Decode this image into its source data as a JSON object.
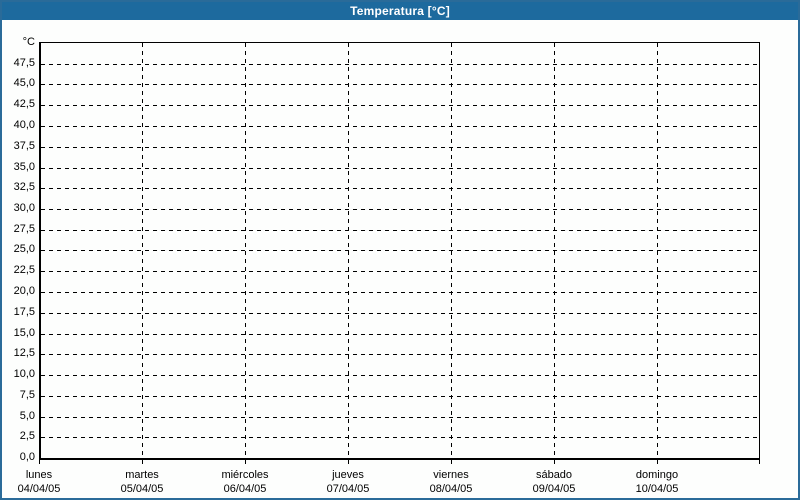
{
  "header": {
    "title": "Temperatura [°C]"
  },
  "colors": {
    "titlebar_bg": "#1d6a9e",
    "titlebar_text": "#ffffff",
    "window_border": "#2a6b99",
    "background": "#fdfefd",
    "grid": "#000000",
    "text": "#000000"
  },
  "chart_data": {
    "type": "line",
    "title": "Temperatura [°C]",
    "ylabel": "°C",
    "xlabel": "",
    "ylim": [
      0,
      50
    ],
    "ytick_step": 2.5,
    "grid": true,
    "legend": "none",
    "series": [],
    "yticks": [
      {
        "value": 0,
        "label": "0,0"
      },
      {
        "value": 2.5,
        "label": "2,5"
      },
      {
        "value": 5,
        "label": "5,0"
      },
      {
        "value": 7.5,
        "label": "7,5"
      },
      {
        "value": 10,
        "label": "10,0"
      },
      {
        "value": 12.5,
        "label": "12,5"
      },
      {
        "value": 15,
        "label": "15,0"
      },
      {
        "value": 17.5,
        "label": "17,5"
      },
      {
        "value": 20,
        "label": "20,0"
      },
      {
        "value": 22.5,
        "label": "22,5"
      },
      {
        "value": 25,
        "label": "25,0"
      },
      {
        "value": 27.5,
        "label": "27,5"
      },
      {
        "value": 30,
        "label": "30,0"
      },
      {
        "value": 32.5,
        "label": "32,5"
      },
      {
        "value": 35,
        "label": "35,0"
      },
      {
        "value": 37.5,
        "label": "37,5"
      },
      {
        "value": 40,
        "label": "40,0"
      },
      {
        "value": 42.5,
        "label": "42,5"
      },
      {
        "value": 45,
        "label": "45,0"
      },
      {
        "value": 47.5,
        "label": "47,5"
      }
    ],
    "categories": [
      {
        "day": "lunes",
        "date": "04/04/05"
      },
      {
        "day": "martes",
        "date": "05/04/05"
      },
      {
        "day": "miércoles",
        "date": "06/04/05"
      },
      {
        "day": "jueves",
        "date": "07/04/05"
      },
      {
        "day": "viernes",
        "date": "08/04/05"
      },
      {
        "day": "sábado",
        "date": "09/04/05"
      },
      {
        "day": "domingo",
        "date": "10/04/05"
      }
    ]
  }
}
